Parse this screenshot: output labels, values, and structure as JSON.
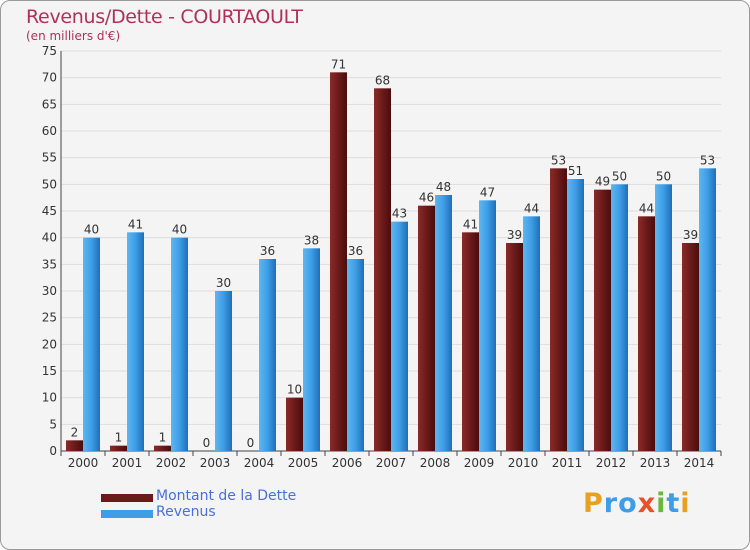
{
  "chart_data": {
    "type": "bar",
    "title": "Revenus/Dette - COURTAOULT",
    "subtitle": "(en milliers d'€)",
    "categories": [
      "2000",
      "2001",
      "2002",
      "2003",
      "2004",
      "2005",
      "2006",
      "2007",
      "2008",
      "2009",
      "2010",
      "2011",
      "2012",
      "2013",
      "2014"
    ],
    "series": [
      {
        "name": "Montant de la Dette",
        "color": "#6b1a1a",
        "values": [
          2,
          1,
          1,
          0,
          0,
          10,
          71,
          68,
          46,
          41,
          39,
          53,
          49,
          44,
          39
        ]
      },
      {
        "name": "Revenus",
        "color": "#3d9de6",
        "values": [
          40,
          41,
          40,
          30,
          36,
          38,
          36,
          43,
          48,
          47,
          44,
          51,
          50,
          50,
          53
        ]
      }
    ],
    "yticks": [
      0,
      5,
      10,
      15,
      20,
      25,
      30,
      35,
      40,
      45,
      50,
      55,
      60,
      65,
      70,
      75
    ],
    "ylim": [
      0,
      75
    ],
    "grid": true
  },
  "legend": {
    "items": [
      {
        "label": "Montant de la Dette",
        "color": "#6b1a1a"
      },
      {
        "label": "Revenus",
        "color": "#3d9de6"
      }
    ]
  },
  "logo": {
    "letters": [
      {
        "ch": "P",
        "color": "#e8a020"
      },
      {
        "ch": "r",
        "color": "#3d9de6"
      },
      {
        "ch": "o",
        "color": "#3d9de6"
      },
      {
        "ch": "x",
        "color": "#e8502a"
      },
      {
        "ch": "i",
        "color": "#6ab83a"
      },
      {
        "ch": "t",
        "color": "#3d9de6"
      },
      {
        "ch": "i",
        "color": "#e8a020"
      }
    ]
  }
}
